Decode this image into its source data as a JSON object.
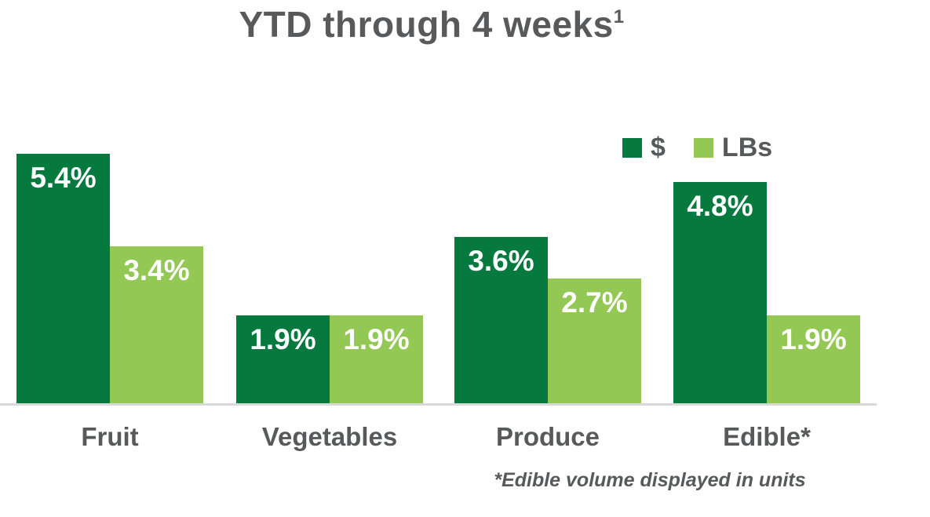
{
  "title": {
    "text": "YTD through 4 weeks",
    "superscript": "1"
  },
  "legend": [
    {
      "label": "$",
      "color": "#067A3E"
    },
    {
      "label": "LBs",
      "color": "#92C853"
    }
  ],
  "footnote": "*Edible volume displayed in units",
  "colors": {
    "dollars_green": "#067A3E",
    "lbs_green": "#92C853",
    "text_gray": "#58595B",
    "baseline_gray": "#D9D9D9",
    "value_label_white": "#ffffff"
  },
  "chart_data": {
    "type": "bar",
    "title": "YTD through 4 weeks¹",
    "categories": [
      "Fruit",
      "Vegetables",
      "Produce",
      "Edible*"
    ],
    "series": [
      {
        "name": "$",
        "color": "#067A3E",
        "values": [
          5.4,
          1.9,
          3.6,
          4.8
        ],
        "labels": [
          "5.4%",
          "1.9%",
          "3.6%",
          "4.8%"
        ]
      },
      {
        "name": "LBs",
        "color": "#92C853",
        "values": [
          3.4,
          1.9,
          2.7,
          1.9
        ],
        "labels": [
          "3.4%",
          "1.9%",
          "2.7%",
          "1.9%"
        ]
      }
    ],
    "value_suffix": "%",
    "xlabel": "",
    "ylabel": "",
    "ylim": [
      0,
      6
    ],
    "grid": false,
    "axis_lines": "bottom-only",
    "legend_position": "top-right",
    "annotations": [
      "*Edible volume displayed in units"
    ]
  }
}
